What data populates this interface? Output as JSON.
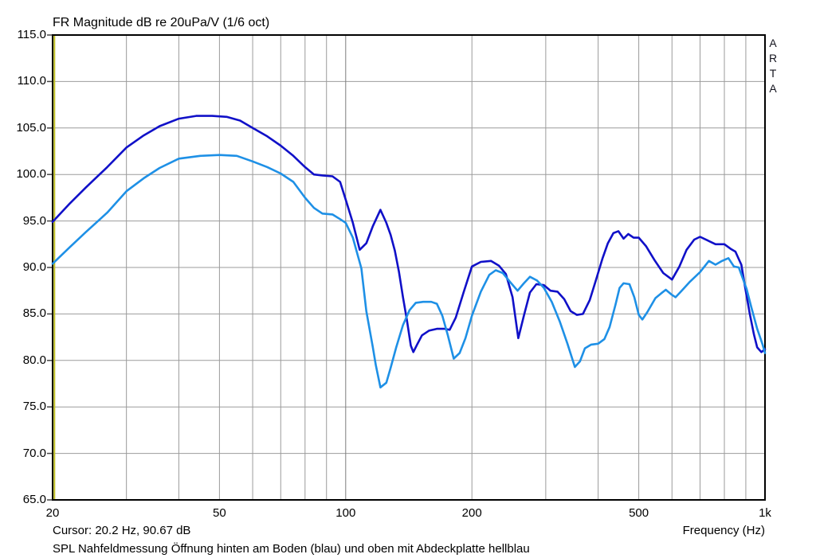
{
  "header": {
    "title": "FR Magnitude dB re 20uPa/V (1/6 oct)"
  },
  "watermark": "A\nR\nT\nA",
  "footer": {
    "cursor_readout": "Cursor: 20.2 Hz, 90.67 dB",
    "x_axis_title": "Frequency (Hz)",
    "annotation": "SPL Nahfeldmessung Öffnung hinten am Boden (blau) und oben mit Abdeckplatte hellblau"
  },
  "colors": {
    "blau": "#1010c8",
    "hellblau": "#1e90e6",
    "grid": "#9b9b9b",
    "grid_decade": "#7d7d7d",
    "cursor": "#b9b91c",
    "border": "#000000",
    "tick": "#444444"
  },
  "chart_data": {
    "type": "line",
    "title": "FR Magnitude dB re 20uPa/V (1/6 oct)",
    "xlabel": "Frequency (Hz)",
    "ylabel": "dB re 20uPa/V",
    "x_scale": "log",
    "xlim": [
      20,
      1000
    ],
    "ylim": [
      65,
      115
    ],
    "grid": true,
    "y_ticks": [
      115,
      110,
      105,
      100,
      95,
      90,
      85,
      80,
      75,
      70,
      65
    ],
    "x_major_ticks": [
      {
        "f": 20,
        "label": "20"
      },
      {
        "f": 50,
        "label": "50"
      },
      {
        "f": 100,
        "label": "100"
      },
      {
        "f": 200,
        "label": "200"
      },
      {
        "f": 500,
        "label": "500"
      },
      {
        "f": 1000,
        "label": "1k"
      }
    ],
    "x_grid_light": [
      30,
      40,
      50,
      60,
      70,
      80,
      90,
      200,
      300,
      400,
      500,
      600,
      700,
      800,
      900
    ],
    "x_grid_decade": [
      100
    ],
    "cursor": {
      "freq_hz": 20.2,
      "db": 90.67
    },
    "series": [
      {
        "name": "blau",
        "description": "SPL Nahfeldmessung Öffnung hinten am Boden",
        "color_key": "blau",
        "points": [
          [
            20,
            94.9
          ],
          [
            22,
            96.9
          ],
          [
            24,
            98.6
          ],
          [
            27,
            100.8
          ],
          [
            30,
            102.9
          ],
          [
            33,
            104.2
          ],
          [
            36,
            105.2
          ],
          [
            40,
            106.0
          ],
          [
            44,
            106.3
          ],
          [
            48,
            106.3
          ],
          [
            52,
            106.2
          ],
          [
            56,
            105.8
          ],
          [
            60,
            105.0
          ],
          [
            65,
            104.1
          ],
          [
            70,
            103.1
          ],
          [
            75,
            102.0
          ],
          [
            80,
            100.8
          ],
          [
            84,
            100.0
          ],
          [
            88,
            99.9
          ],
          [
            93,
            99.8
          ],
          [
            97,
            99.2
          ],
          [
            100,
            97.3
          ],
          [
            104,
            94.8
          ],
          [
            108,
            91.9
          ],
          [
            112,
            92.6
          ],
          [
            116,
            94.4
          ],
          [
            121,
            96.2
          ],
          [
            125,
            94.8
          ],
          [
            128,
            93.5
          ],
          [
            131,
            91.8
          ],
          [
            134,
            89.5
          ],
          [
            137,
            86.8
          ],
          [
            140,
            84.3
          ],
          [
            143,
            81.6
          ],
          [
            145,
            80.9
          ],
          [
            148,
            81.7
          ],
          [
            152,
            82.7
          ],
          [
            158,
            83.2
          ],
          [
            165,
            83.4
          ],
          [
            172,
            83.4
          ],
          [
            177,
            83.3
          ],
          [
            183,
            84.6
          ],
          [
            191,
            87.3
          ],
          [
            200,
            90.1
          ],
          [
            210,
            90.6
          ],
          [
            222,
            90.7
          ],
          [
            232,
            90.2
          ],
          [
            241,
            89.3
          ],
          [
            250,
            86.8
          ],
          [
            258,
            82.4
          ],
          [
            266,
            84.8
          ],
          [
            275,
            87.3
          ],
          [
            285,
            88.2
          ],
          [
            297,
            88.1
          ],
          [
            308,
            87.5
          ],
          [
            320,
            87.4
          ],
          [
            332,
            86.6
          ],
          [
            344,
            85.3
          ],
          [
            356,
            84.9
          ],
          [
            368,
            85.0
          ],
          [
            382,
            86.5
          ],
          [
            395,
            88.6
          ],
          [
            410,
            91.0
          ],
          [
            422,
            92.6
          ],
          [
            435,
            93.7
          ],
          [
            447,
            93.9
          ],
          [
            460,
            93.1
          ],
          [
            472,
            93.6
          ],
          [
            486,
            93.2
          ],
          [
            500,
            93.2
          ],
          [
            520,
            92.3
          ],
          [
            545,
            90.8
          ],
          [
            572,
            89.4
          ],
          [
            600,
            88.7
          ],
          [
            625,
            90.1
          ],
          [
            650,
            91.9
          ],
          [
            678,
            93.0
          ],
          [
            700,
            93.3
          ],
          [
            730,
            92.9
          ],
          [
            762,
            92.5
          ],
          [
            800,
            92.5
          ],
          [
            828,
            92.0
          ],
          [
            850,
            91.7
          ],
          [
            866,
            90.9
          ],
          [
            878,
            90.3
          ],
          [
            898,
            87.7
          ],
          [
            919,
            85.1
          ],
          [
            941,
            82.8
          ],
          [
            958,
            81.4
          ],
          [
            980,
            80.9
          ],
          [
            1000,
            81.2
          ]
        ]
      },
      {
        "name": "hellblau",
        "description": "SPL Nahfeldmessung Öffnung oben mit Abdeckplatte",
        "color_key": "hellblau",
        "points": [
          [
            20,
            90.4
          ],
          [
            22,
            92.2
          ],
          [
            24,
            93.8
          ],
          [
            27,
            95.9
          ],
          [
            30,
            98.2
          ],
          [
            33,
            99.6
          ],
          [
            36,
            100.7
          ],
          [
            40,
            101.7
          ],
          [
            45,
            102.0
          ],
          [
            50,
            102.1
          ],
          [
            55,
            102.0
          ],
          [
            60,
            101.4
          ],
          [
            65,
            100.8
          ],
          [
            70,
            100.1
          ],
          [
            75,
            99.2
          ],
          [
            80,
            97.5
          ],
          [
            84,
            96.4
          ],
          [
            88,
            95.8
          ],
          [
            93,
            95.7
          ],
          [
            97,
            95.2
          ],
          [
            100,
            94.8
          ],
          [
            104,
            93.2
          ],
          [
            109,
            89.9
          ],
          [
            112,
            85.3
          ],
          [
            116,
            81.5
          ],
          [
            118,
            79.5
          ],
          [
            121,
            77.1
          ],
          [
            125,
            77.6
          ],
          [
            128,
            79.2
          ],
          [
            132,
            81.4
          ],
          [
            137,
            83.8
          ],
          [
            142,
            85.4
          ],
          [
            147,
            86.2
          ],
          [
            153,
            86.3
          ],
          [
            160,
            86.3
          ],
          [
            165,
            86.1
          ],
          [
            170,
            84.8
          ],
          [
            175,
            82.8
          ],
          [
            181,
            80.2
          ],
          [
            187,
            80.8
          ],
          [
            193,
            82.4
          ],
          [
            200,
            84.8
          ],
          [
            210,
            87.4
          ],
          [
            220,
            89.2
          ],
          [
            228,
            89.7
          ],
          [
            237,
            89.4
          ],
          [
            246,
            88.5
          ],
          [
            257,
            87.5
          ],
          [
            266,
            88.3
          ],
          [
            275,
            89.0
          ],
          [
            286,
            88.6
          ],
          [
            297,
            87.8
          ],
          [
            310,
            86.3
          ],
          [
            324,
            84.2
          ],
          [
            338,
            81.8
          ],
          [
            352,
            79.3
          ],
          [
            362,
            79.9
          ],
          [
            372,
            81.3
          ],
          [
            385,
            81.7
          ],
          [
            400,
            81.8
          ],
          [
            414,
            82.3
          ],
          [
            426,
            83.6
          ],
          [
            440,
            86.0
          ],
          [
            450,
            87.8
          ],
          [
            460,
            88.3
          ],
          [
            475,
            88.2
          ],
          [
            488,
            86.8
          ],
          [
            500,
            84.9
          ],
          [
            510,
            84.4
          ],
          [
            524,
            85.2
          ],
          [
            548,
            86.7
          ],
          [
            565,
            87.2
          ],
          [
            580,
            87.6
          ],
          [
            598,
            87.1
          ],
          [
            612,
            86.8
          ],
          [
            630,
            87.4
          ],
          [
            660,
            88.4
          ],
          [
            700,
            89.5
          ],
          [
            735,
            90.7
          ],
          [
            762,
            90.3
          ],
          [
            790,
            90.7
          ],
          [
            818,
            91.0
          ],
          [
            843,
            90.1
          ],
          [
            866,
            90.0
          ],
          [
            904,
            87.7
          ],
          [
            928,
            85.7
          ],
          [
            958,
            83.4
          ],
          [
            987,
            81.7
          ],
          [
            1000,
            80.8
          ]
        ]
      }
    ]
  }
}
